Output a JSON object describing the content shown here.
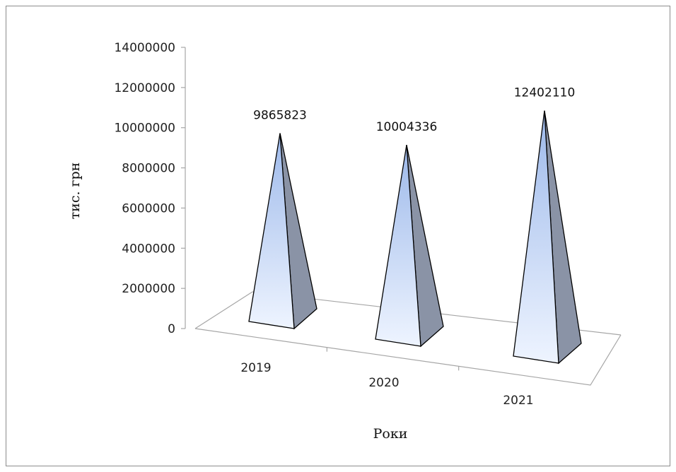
{
  "chart_data": {
    "type": "bar",
    "shape": "pyramid",
    "categories": [
      "2019",
      "2020",
      "2021"
    ],
    "values": [
      9865823,
      10004336,
      12402110
    ],
    "data_labels": [
      "9865823",
      "10004336",
      "12402110"
    ],
    "xlabel": "Роки",
    "ylabel": "тис. грн",
    "ylim": [
      0,
      14000000
    ],
    "yticks": [
      "0",
      "2000000",
      "4000000",
      "6000000",
      "8000000",
      "10000000",
      "12000000",
      "14000000"
    ],
    "grid": false,
    "legend": "none",
    "colors": {
      "front_top": "#9db9ea",
      "front_bottom": "#eef4ff",
      "side": "#8a93a6",
      "edge": "#000000",
      "axis": "#a6a6a6"
    }
  }
}
